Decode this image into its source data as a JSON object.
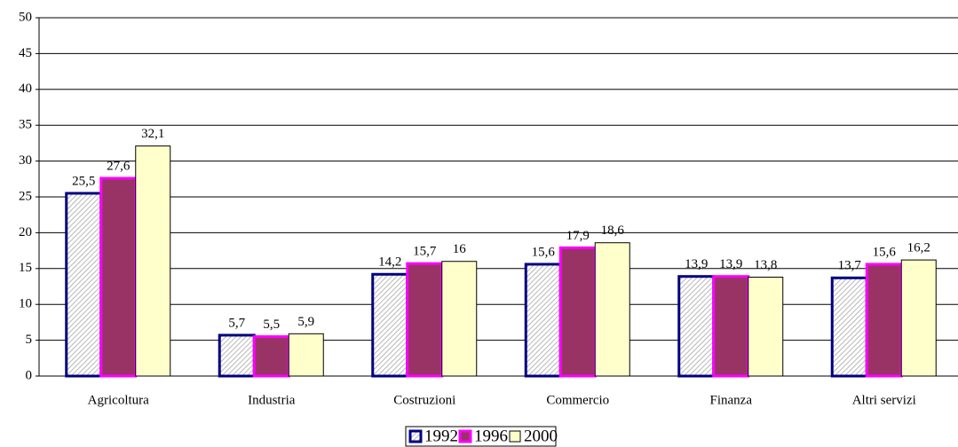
{
  "chart_data": {
    "type": "bar",
    "categories": [
      "Agricoltura",
      "Industria",
      "Costruzioni",
      "Commercio",
      "Finanza",
      "Altri servizi"
    ],
    "series": [
      {
        "name": "1992",
        "color": "#a0a0a0",
        "edgecolor": "#000080",
        "pattern": "hatch",
        "values": [
          25.5,
          5.7,
          14.2,
          15.6,
          13.9,
          13.7
        ],
        "value_labels": [
          "25,5",
          "5,7",
          "14,2",
          "15,6",
          "13,9",
          "13,7"
        ]
      },
      {
        "name": "1996",
        "color": "#993366",
        "edgecolor": "#ff00ff",
        "values": [
          27.6,
          5.5,
          15.7,
          17.9,
          13.9,
          15.6
        ],
        "value_labels": [
          "27,6",
          "5,5",
          "15,7",
          "17,9",
          "13,9",
          "15,6"
        ]
      },
      {
        "name": "2000",
        "color": "#ffffcc",
        "edgecolor": "#000000",
        "values": [
          32.1,
          5.9,
          16,
          18.6,
          13.8,
          16.2
        ],
        "value_labels": [
          "32,1",
          "5,9",
          "16",
          "18,6",
          "13,8",
          "16,2"
        ]
      }
    ],
    "ylim": [
      0,
      50
    ],
    "yticks": [
      0,
      5,
      10,
      15,
      20,
      25,
      30,
      35,
      40,
      45,
      50
    ],
    "grid": true,
    "legend": "bottom"
  }
}
